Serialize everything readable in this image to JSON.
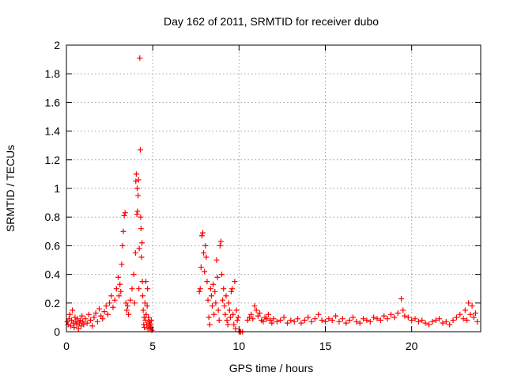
{
  "chart_data": {
    "type": "scatter",
    "title": "Day 162 of 2011, SRMTID for receiver dubo",
    "xlabel": "GPS time / hours",
    "ylabel": "SRMTID / TECUs",
    "xlim": [
      0,
      24
    ],
    "ylim": [
      0,
      2
    ],
    "xticks": [
      0,
      5,
      10,
      15,
      20
    ],
    "yticks": [
      0,
      0.2,
      0.4,
      0.6,
      0.8,
      1,
      1.2,
      1.4,
      1.6,
      1.8,
      2
    ],
    "xtick_labels": [
      "0",
      "5",
      "10",
      "15",
      "20"
    ],
    "ytick_labels": [
      "0",
      "0.2",
      "0.4",
      "0.6",
      "0.8",
      "1",
      "1.2",
      "1.4",
      "1.6",
      "1.8",
      "2"
    ],
    "grid": true,
    "marker": "+",
    "color": "#ff0000",
    "series": [
      {
        "x": [
          0.05,
          0.1,
          0.15,
          0.2,
          0.25,
          0.3,
          0.35,
          0.4,
          0.45,
          0.5,
          0.55,
          0.6,
          0.65,
          0.7,
          0.75,
          0.8,
          0.85,
          0.9,
          0.95,
          1.0,
          1.1,
          1.2,
          1.3,
          1.4,
          1.5,
          1.6,
          1.7,
          1.8,
          1.9,
          2.0,
          2.1,
          2.2,
          2.3,
          2.4,
          2.5,
          2.6,
          2.7,
          2.8,
          2.9,
          3.0,
          3.05,
          3.1,
          3.15,
          3.2,
          3.25,
          3.3,
          3.35,
          3.4,
          3.45,
          3.5,
          3.55,
          3.6,
          3.7,
          3.8,
          3.9,
          3.95,
          4.0,
          4.02,
          4.05,
          4.08,
          4.1,
          4.12,
          4.15,
          4.18,
          4.2,
          4.22,
          4.25,
          4.28,
          4.3,
          4.32,
          4.35,
          4.38,
          4.4,
          4.42,
          4.45,
          4.48,
          4.5,
          4.52,
          4.55,
          4.58,
          4.6,
          4.62,
          4.65,
          4.68,
          4.7,
          4.72,
          4.75,
          4.78,
          4.8,
          4.82,
          4.85,
          4.88,
          4.9,
          4.92,
          4.95,
          7.7,
          7.75,
          7.8,
          7.85,
          7.9,
          7.95,
          8.0,
          8.05,
          8.1,
          8.15,
          8.2,
          8.25,
          8.3,
          8.35,
          8.4,
          8.45,
          8.5,
          8.55,
          8.6,
          8.65,
          8.7,
          8.75,
          8.8,
          8.85,
          8.9,
          8.95,
          9.0,
          9.05,
          9.1,
          9.15,
          9.2,
          9.25,
          9.3,
          9.35,
          9.4,
          9.45,
          9.5,
          9.55,
          9.6,
          9.65,
          9.7,
          9.75,
          9.8,
          9.85,
          9.9,
          9.95,
          10.0,
          10.05,
          10.1,
          10.2,
          10.5,
          10.6,
          10.7,
          10.8,
          10.9,
          11.0,
          11.1,
          11.2,
          11.3,
          11.4,
          11.5,
          11.6,
          11.7,
          11.8,
          11.9,
          12.0,
          12.2,
          12.4,
          12.6,
          12.8,
          13.0,
          13.2,
          13.4,
          13.6,
          13.8,
          14.0,
          14.2,
          14.4,
          14.6,
          14.8,
          15.0,
          15.2,
          15.4,
          15.6,
          15.8,
          16.0,
          16.2,
          16.4,
          16.6,
          16.8,
          17.0,
          17.2,
          17.4,
          17.6,
          17.8,
          18.0,
          18.2,
          18.4,
          18.6,
          18.8,
          19.0,
          19.2,
          19.4,
          19.5,
          19.6,
          19.8,
          20.0,
          20.2,
          20.4,
          20.6,
          20.8,
          21.0,
          21.2,
          21.4,
          21.6,
          21.8,
          22.0,
          22.2,
          22.4,
          22.6,
          22.8,
          23.0,
          23.1,
          23.2,
          23.3,
          23.4,
          23.5,
          23.6,
          23.7,
          23.8
        ],
        "y": [
          0.07,
          0.05,
          0.09,
          0.12,
          0.04,
          0.08,
          0.15,
          0.06,
          0.03,
          0.1,
          0.07,
          0.05,
          0.09,
          0.02,
          0.06,
          0.08,
          0.04,
          0.11,
          0.07,
          0.05,
          0.09,
          0.06,
          0.12,
          0.08,
          0.04,
          0.1,
          0.13,
          0.07,
          0.16,
          0.11,
          0.09,
          0.14,
          0.18,
          0.12,
          0.2,
          0.25,
          0.17,
          0.22,
          0.3,
          0.38,
          0.25,
          0.33,
          0.28,
          0.47,
          0.6,
          0.7,
          0.81,
          0.83,
          0.2,
          0.15,
          0.18,
          0.12,
          0.22,
          0.3,
          0.4,
          0.2,
          0.55,
          1.05,
          1.1,
          0.82,
          1.0,
          0.84,
          0.95,
          1.06,
          0.3,
          0.58,
          1.91,
          1.27,
          0.8,
          0.72,
          0.52,
          0.62,
          0.35,
          0.25,
          0.15,
          0.05,
          0.1,
          0.03,
          0.2,
          0.08,
          0.35,
          0.12,
          0.05,
          0.18,
          0.3,
          0.02,
          0.1,
          0.06,
          0.04,
          0.07,
          0.02,
          0.05,
          0.03,
          0.08,
          0.01,
          0.28,
          0.3,
          0.45,
          0.67,
          0.69,
          0.55,
          0.42,
          0.6,
          0.52,
          0.35,
          0.22,
          0.1,
          0.05,
          0.3,
          0.25,
          0.18,
          0.33,
          0.12,
          0.28,
          0.2,
          0.5,
          0.38,
          0.15,
          0.08,
          0.6,
          0.63,
          0.4,
          0.22,
          0.3,
          0.18,
          0.12,
          0.25,
          0.08,
          0.05,
          0.2,
          0.15,
          0.1,
          0.28,
          0.3,
          0.12,
          0.05,
          0.35,
          0.02,
          0.15,
          0.08,
          0.1,
          0.0,
          0.0,
          0.0,
          0.0,
          0.08,
          0.1,
          0.12,
          0.09,
          0.18,
          0.15,
          0.11,
          0.13,
          0.08,
          0.07,
          0.1,
          0.09,
          0.12,
          0.08,
          0.06,
          0.09,
          0.07,
          0.08,
          0.1,
          0.06,
          0.08,
          0.07,
          0.09,
          0.06,
          0.08,
          0.1,
          0.07,
          0.09,
          0.12,
          0.08,
          0.07,
          0.09,
          0.08,
          0.11,
          0.07,
          0.09,
          0.06,
          0.08,
          0.1,
          0.07,
          0.06,
          0.09,
          0.08,
          0.07,
          0.1,
          0.09,
          0.08,
          0.11,
          0.09,
          0.12,
          0.1,
          0.13,
          0.23,
          0.15,
          0.11,
          0.1,
          0.08,
          0.09,
          0.07,
          0.08,
          0.06,
          0.05,
          0.07,
          0.08,
          0.09,
          0.06,
          0.07,
          0.05,
          0.08,
          0.1,
          0.12,
          0.09,
          0.15,
          0.08,
          0.2,
          0.12,
          0.18,
          0.1,
          0.13,
          0.07
        ]
      }
    ]
  }
}
